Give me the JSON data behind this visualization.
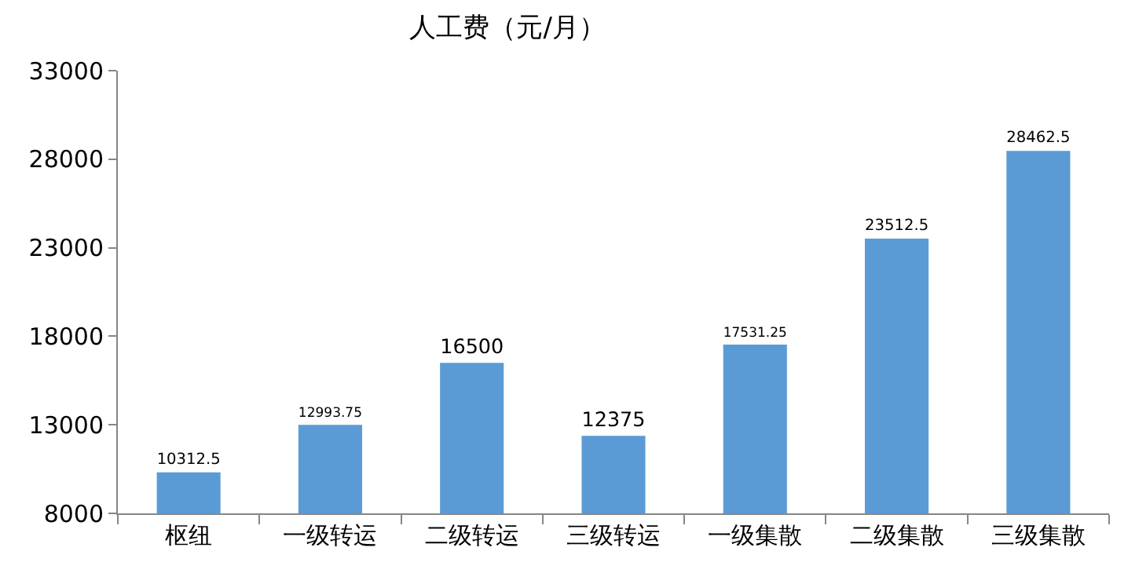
{
  "chart_data": {
    "type": "bar",
    "title": "人工费（元/月）",
    "categories": [
      "枢纽",
      "一级转运",
      "二级转运",
      "三级转运",
      "一级集散",
      "二级集散",
      "三级集散"
    ],
    "values": [
      10312.5,
      12993.75,
      16500,
      12375,
      17531.25,
      23512.5,
      28462.5
    ],
    "color": "#5b9bd5",
    "ylim": [
      8000,
      33000
    ],
    "yticks": [
      8000,
      13000,
      18000,
      23000,
      28000,
      33000
    ],
    "grid": false,
    "legend": false,
    "data_labels": true
  }
}
